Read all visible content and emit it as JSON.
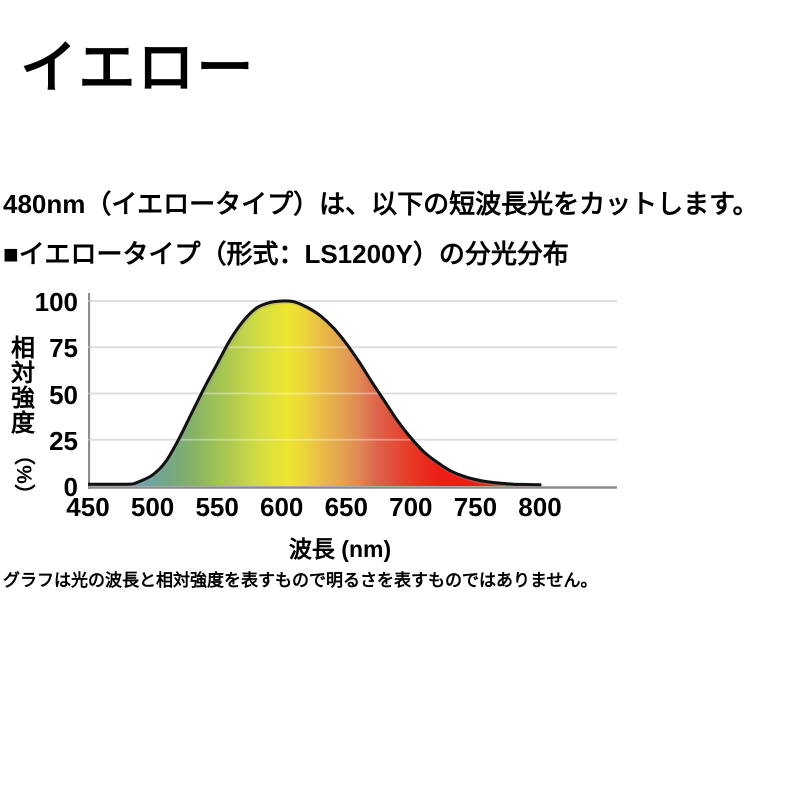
{
  "page": {
    "title": "イエロー",
    "description": "480nm（イエロータイプ）は、以下の短波長光をカットします。",
    "section_heading": "■イエロータイプ（形式：LS1200Y）の分光分布",
    "footnote": "グラフは光の波長と相対強度を表すもので明るさを表すものではありません。"
  },
  "chart_data": {
    "type": "area",
    "title": "イエロータイプ（形式：LS1200Y）の分光分布",
    "xlabel": "波長 (nm)",
    "ylabel": "相対強度（%）",
    "ylabel_main": "相対強度",
    "ylabel_unit": "（%）",
    "xlim": [
      450,
      800
    ],
    "ylim": [
      0,
      100
    ],
    "x_ticks": [
      450,
      500,
      550,
      600,
      650,
      700,
      750,
      800
    ],
    "y_ticks": [
      0,
      25,
      50,
      75,
      100
    ],
    "grid": "horizontal",
    "x": [
      450,
      460,
      470,
      480,
      485,
      490,
      500,
      510,
      520,
      530,
      540,
      550,
      560,
      570,
      580,
      590,
      600,
      610,
      620,
      630,
      640,
      650,
      660,
      670,
      680,
      690,
      700,
      710,
      720,
      730,
      740,
      750,
      760,
      770,
      780,
      790,
      800
    ],
    "values": [
      1,
      1,
      1,
      1,
      1.2,
      2.5,
      6,
      13,
      25,
      39,
      53,
      66,
      79,
      89,
      96,
      99,
      100,
      99.5,
      96.5,
      92,
      85.5,
      77,
      67,
      56,
      45.5,
      35,
      26,
      18.5,
      13,
      8.5,
      5.5,
      3.5,
      2.2,
      1.5,
      1,
      0.8,
      0.7
    ],
    "line_color": "#111111",
    "grid_color": "#c9c9c9",
    "axis_color": "#8c8c8c",
    "fill_gradient": [
      {
        "nm": 450,
        "color": "#7099b0"
      },
      {
        "nm": 490,
        "color": "#6fa0b0"
      },
      {
        "nm": 505,
        "color": "#6fa592"
      },
      {
        "nm": 520,
        "color": "#79ab77"
      },
      {
        "nm": 535,
        "color": "#8bb563"
      },
      {
        "nm": 550,
        "color": "#9fc355"
      },
      {
        "nm": 565,
        "color": "#b8cd4c"
      },
      {
        "nm": 580,
        "color": "#cedb45"
      },
      {
        "nm": 593,
        "color": "#e0e139"
      },
      {
        "nm": 605,
        "color": "#ede42f"
      },
      {
        "nm": 618,
        "color": "#ecd53a"
      },
      {
        "nm": 632,
        "color": "#e8b946"
      },
      {
        "nm": 646,
        "color": "#e3a44f"
      },
      {
        "nm": 660,
        "color": "#df8853"
      },
      {
        "nm": 673,
        "color": "#dc664c"
      },
      {
        "nm": 686,
        "color": "#e1503b"
      },
      {
        "nm": 698,
        "color": "#e63d29"
      },
      {
        "nm": 710,
        "color": "#ea2c1e"
      },
      {
        "nm": 722,
        "color": "#ee1f16"
      },
      {
        "nm": 740,
        "color": "#ed1b14"
      },
      {
        "nm": 770,
        "color": "#ea2f1f"
      },
      {
        "nm": 800,
        "color": "#e93a26"
      }
    ]
  }
}
